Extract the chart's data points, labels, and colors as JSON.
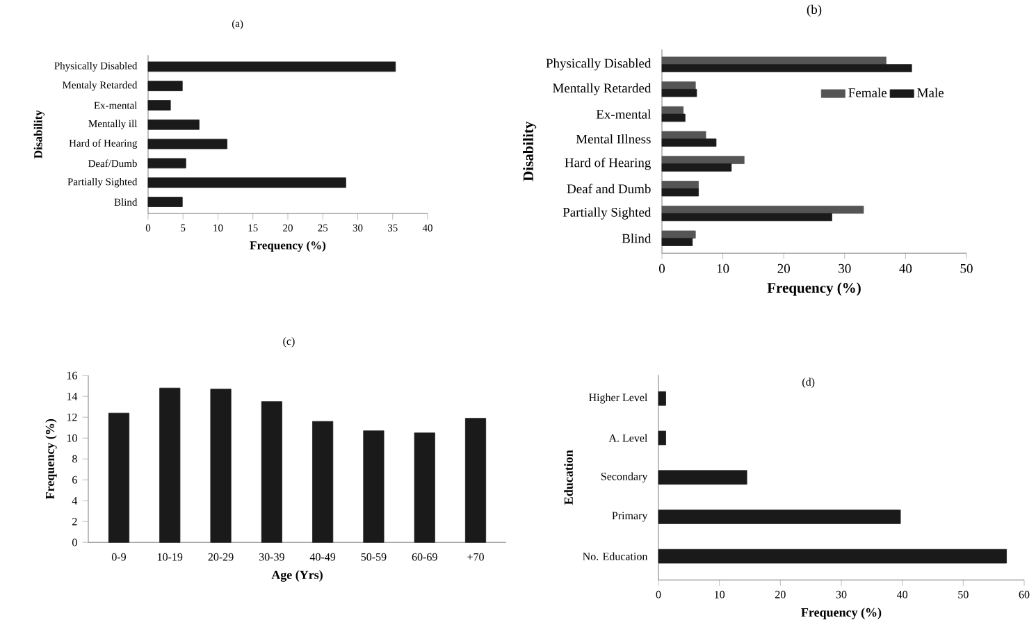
{
  "chart_data": [
    {
      "type": "bar",
      "orientation": "horizontal",
      "title": "(a)",
      "xlabel": "Frequency (%)",
      "ylabel": "Disability",
      "color": "#1a1a1a",
      "categories": [
        "Physically Disabled",
        "Mentaly Retarded",
        "Ex-mental",
        "Mentally ill",
        "Hard of Hearing",
        "Deaf/Dumb",
        "Partially Sighted",
        "Blind"
      ],
      "values": [
        35.4,
        4.9,
        3.2,
        7.3,
        11.3,
        5.4,
        28.3,
        4.9
      ],
      "xlim": [
        0,
        40
      ],
      "xticks": [
        0,
        5,
        10,
        15,
        20,
        25,
        30,
        35,
        40
      ]
    },
    {
      "type": "bar",
      "orientation": "horizontal",
      "title": "(b)",
      "xlabel": "Frequency (%)",
      "ylabel": "Disability",
      "legend": "top right",
      "categories": [
        "Physically Disabled",
        "Mentally Retarded",
        "Ex-mental",
        "Mental Illness",
        "Hard of Hearing",
        "Deaf and Dumb",
        "Partially Sighted",
        "Blind"
      ],
      "series": [
        {
          "name": "Female",
          "color": "#555555",
          "values": [
            36.8,
            5.5,
            3.5,
            7.2,
            13.5,
            6.0,
            33.1,
            5.5
          ]
        },
        {
          "name": "Male",
          "color": "#1a1a1a",
          "values": [
            41.0,
            5.7,
            3.8,
            8.9,
            11.4,
            6.0,
            27.9,
            5.0
          ]
        }
      ],
      "xlim": [
        0,
        50
      ],
      "xticks": [
        0,
        10,
        20,
        30,
        40,
        50
      ]
    },
    {
      "type": "bar",
      "title": "(c)",
      "xlabel": "Age (Yrs)",
      "ylabel": "Frequency (%)",
      "color": "#1a1a1a",
      "categories": [
        "0-9",
        "10-19",
        "20-29",
        "30-39",
        "40-49",
        "50-59",
        "60-69",
        "+70"
      ],
      "values": [
        12.4,
        14.8,
        14.7,
        13.5,
        11.6,
        10.7,
        10.5,
        11.9
      ],
      "ylim": [
        0,
        16
      ],
      "yticks": [
        0,
        2,
        4,
        6,
        8,
        10,
        12,
        14,
        16
      ]
    },
    {
      "type": "bar",
      "orientation": "horizontal",
      "title": "(d)",
      "xlabel": "Frequency (%)",
      "ylabel": "Education",
      "color": "#1a1a1a",
      "categories": [
        "Higher Level",
        "A. Level",
        "Secondary",
        "Primary",
        "No. Education"
      ],
      "values": [
        1.2,
        1.2,
        14.5,
        39.7,
        57.1
      ],
      "xlim": [
        0,
        60
      ],
      "xticks": [
        0,
        10,
        20,
        30,
        40,
        50,
        60
      ]
    }
  ]
}
